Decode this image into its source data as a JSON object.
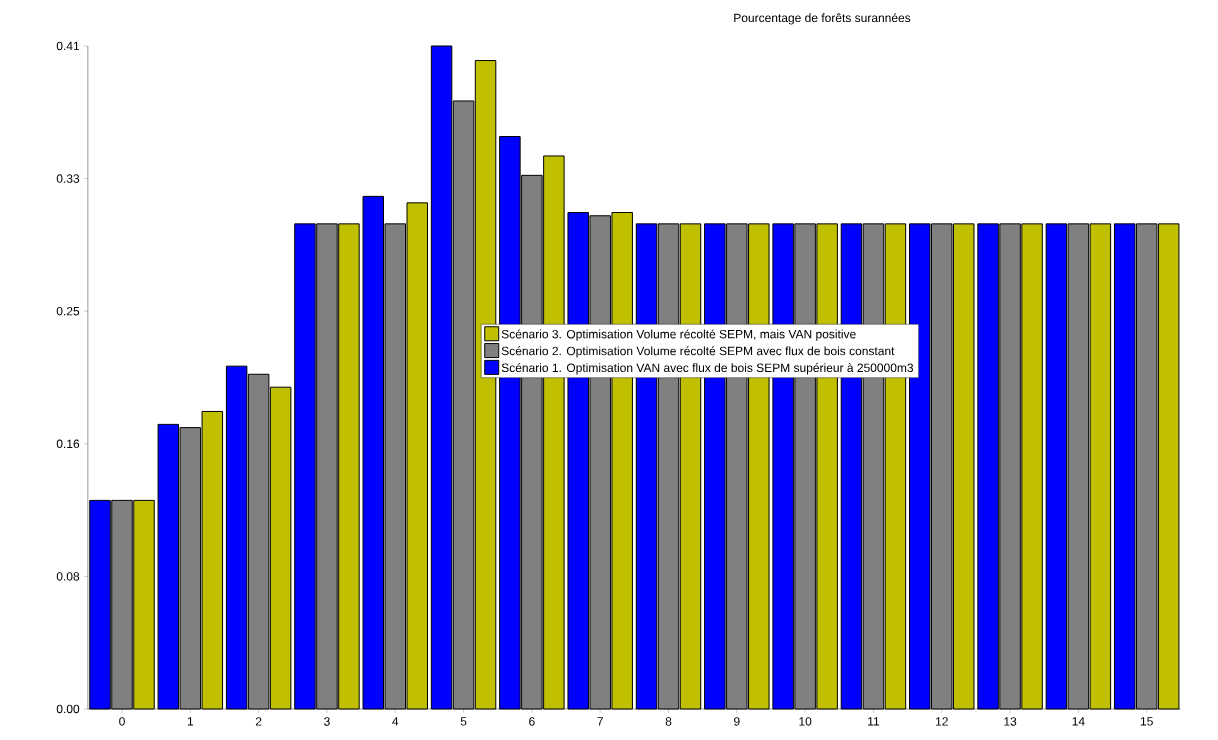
{
  "chart_data": {
    "type": "bar",
    "title": "Pourcentage de forêts surannées",
    "categories": [
      "0",
      "1",
      "2",
      "3",
      "4",
      "5",
      "6",
      "7",
      "8",
      "9",
      "10",
      "11",
      "12",
      "13",
      "14",
      "15"
    ],
    "series": [
      {
        "name": "Scénario 1. Optimisation VAN avec flux de bois SEPM supérieur à 250000m3",
        "color": "#0000ff",
        "values": [
          0.129,
          0.176,
          0.212,
          0.3,
          0.317,
          0.41,
          0.354,
          0.307,
          0.3,
          0.3,
          0.3,
          0.3,
          0.3,
          0.3,
          0.3,
          0.3
        ]
      },
      {
        "name": "Scénario 2. Optimisation Volume récolté SEPM avec flux de bois constant",
        "color": "#808080",
        "values": [
          0.129,
          0.174,
          0.207,
          0.3,
          0.3,
          0.376,
          0.33,
          0.305,
          0.3,
          0.3,
          0.3,
          0.3,
          0.3,
          0.3,
          0.3,
          0.3
        ]
      },
      {
        "name": "Scénario 3. Optimisation Volume récolté SEPM, mais VAN positive",
        "color": "#c0c000",
        "values": [
          0.129,
          0.184,
          0.199,
          0.3,
          0.313,
          0.401,
          0.342,
          0.307,
          0.3,
          0.3,
          0.3,
          0.3,
          0.3,
          0.3,
          0.3,
          0.3
        ]
      }
    ],
    "ylim": [
      0,
      0.41
    ],
    "yticks": [
      {
        "value": 0,
        "label": "0.00"
      },
      {
        "value": 0.082,
        "label": "0.08"
      },
      {
        "value": 0.164,
        "label": "0.16"
      },
      {
        "value": 0.246,
        "label": "0.25"
      },
      {
        "value": 0.328,
        "label": "0.33"
      },
      {
        "value": 0.41,
        "label": "0.41"
      }
    ],
    "grid": false,
    "legend": "center"
  }
}
